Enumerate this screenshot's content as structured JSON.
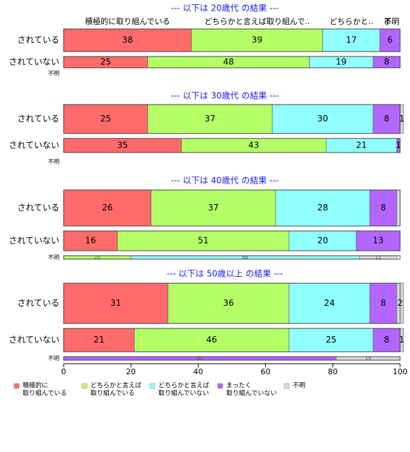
{
  "chart_data": {
    "type": "bar",
    "orientation": "horizontal",
    "stacked": "percent",
    "xlim": [
      0,
      100
    ],
    "x_ticks": [
      0,
      20,
      40,
      60,
      80,
      100
    ],
    "legend_placement": "bottom",
    "colors": {
      "積極的に取り組んでいる": "#ff6b6b",
      "どちらかと言えば取り組んでいる": "#b4ff66",
      "どちらかと言えば取り組んでいない": "#91ffff",
      "まったく取り組んでいない": "#b266ff",
      "不明": "#d9d9d9"
    },
    "legend": [
      {
        "key": "積極的に取り組んでいる",
        "lines": [
          "積極的に",
          "取り組んでいる"
        ]
      },
      {
        "key": "どちらかと言えば取り組んでいる",
        "lines": [
          "どちらかと言えば",
          "取り組んでいる"
        ]
      },
      {
        "key": "どちらかと言えば取り組んでいない",
        "lines": [
          "どちらかと言えば",
          "取り組んでいない"
        ]
      },
      {
        "key": "まったく取り組んでいない",
        "lines": [
          "まったく",
          "取り組んでいない"
        ]
      },
      {
        "key": "不明",
        "lines": [
          "不明"
        ]
      }
    ],
    "series_order": [
      "積極的に取り組んでいる",
      "どちらかと言えば取り組んでいる",
      "どちらかと言えば取り組んでいない",
      "まったく取り組んでいない",
      "不明"
    ],
    "panels": [
      {
        "title": "--- 以下は 20歳代 の結果 ---",
        "header_labels": [
          "積極的に取り組んでいる",
          "どちらかと言えば取り組んで..",
          "どちらかと..",
          "ま..",
          "不明"
        ],
        "rows": [
          {
            "label": "されている",
            "values": [
              38,
              39,
              17,
              6,
              0
            ],
            "value_labels": [
              "38",
              "39",
              "17",
              "6",
              ""
            ]
          },
          {
            "label": "されていない",
            "values": [
              25,
              48,
              19,
              8,
              0
            ],
            "value_labels": [
              "25",
              "48",
              "19",
              "8",
              ""
            ]
          },
          {
            "label": "不明",
            "values": [],
            "value_labels": []
          }
        ]
      },
      {
        "title": "--- 以下は 30歳代 の結果 ---",
        "rows": [
          {
            "label": "されている",
            "values": [
              25,
              37,
              30,
              8,
              1
            ],
            "value_labels": [
              "25",
              "37",
              "30",
              "8",
              "1"
            ]
          },
          {
            "label": "されていない",
            "values": [
              35,
              43,
              21,
              1,
              0
            ],
            "value_labels": [
              "35",
              "43",
              "21",
              "1",
              ""
            ]
          },
          {
            "label": "不明",
            "values": [],
            "value_labels": []
          }
        ]
      },
      {
        "title": "--- 以下は 40歳代 の結果 ---",
        "rows": [
          {
            "label": "されている",
            "values": [
              26,
              37,
              28,
              8,
              1
            ],
            "value_labels": [
              "26",
              "37",
              "28",
              "8",
              ""
            ]
          },
          {
            "label": "されていない",
            "values": [
              16,
              51,
              20,
              13,
              0
            ],
            "value_labels": [
              "16",
              "51",
              "20",
              "13",
              ""
            ]
          },
          {
            "label": "不明",
            "values": [
              0,
              20,
              68,
              0,
              11
            ],
            "value_labels": [
              "",
              "20",
              "68",
              "",
              "11"
            ]
          }
        ]
      },
      {
        "title": "--- 以下は 50歳以上 の結果 ---",
        "rows": [
          {
            "label": "されている",
            "values": [
              31,
              36,
              24,
              8,
              2
            ],
            "value_labels": [
              "31",
              "36",
              "24",
              "8",
              "2"
            ]
          },
          {
            "label": "されていない",
            "values": [
              21,
              46,
              25,
              8,
              1
            ],
            "value_labels": [
              "21",
              "46",
              "25",
              "8",
              "1"
            ]
          },
          {
            "label": "不明",
            "values": [
              0,
              0,
              0,
              81,
              19
            ],
            "value_labels": [
              "",
              "",
              "",
              "81",
              "19"
            ]
          }
        ]
      }
    ]
  }
}
